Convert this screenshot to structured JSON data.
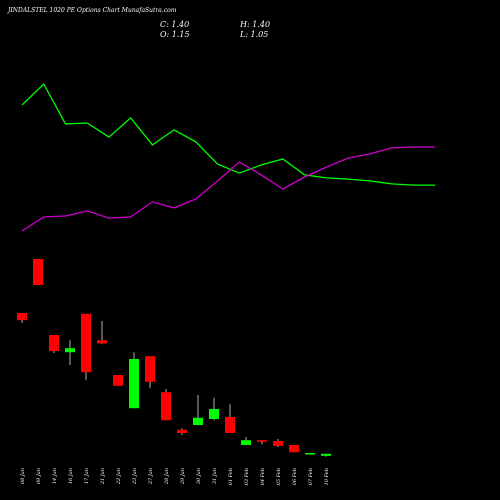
{
  "chart_data": {
    "type": "candlestick",
    "title": "JINDALSTEL 1020 PE Options Chart MunafaSutra.com",
    "info": {
      "close": "C: 1.40",
      "high": "H: 1.40",
      "open": "O: 1.15",
      "low": "L: 1.05"
    },
    "categories": [
      "08 Jan",
      "09 Jan",
      "14 Jan",
      "16 Jan",
      "17 Jan",
      "21 Jan",
      "22 Jan",
      "23 Jan",
      "27 Jan",
      "28 Jan",
      "29 Jan",
      "30 Jan",
      "31 Jan",
      "01 Feb",
      "03 Feb",
      "04 Feb",
      "05 Feb",
      "06 Feb",
      "07 Feb",
      "10 Feb"
    ],
    "open": [
      19,
      25.75,
      16.25,
      14.1,
      18.9,
      15.6,
      11.25,
      7.1,
      13.6,
      9.1,
      4.4,
      5.0,
      5.75,
      6.0,
      2.5,
      3.1,
      3.0,
      2.5,
      1.4,
      1.15
    ],
    "high": [
      19,
      25.75,
      16.25,
      15.6,
      18.9,
      18,
      11.25,
      14.1,
      13.6,
      9.5,
      4.6,
      8.75,
      8.4,
      7.6,
      3.5,
      3.1,
      3.25,
      2.5,
      1.5,
      1.4
    ],
    "low": [
      17.75,
      22.5,
      14,
      12.5,
      10.6,
      15.1,
      9.9,
      7.1,
      9.6,
      5.6,
      3.75,
      5.0,
      5.6,
      4.0,
      2.5,
      2.6,
      2.25,
      1.6,
      1.4,
      1.05
    ],
    "close": [
      18.1,
      22.5,
      14.25,
      14.6,
      11.6,
      15.2,
      9.9,
      13.25,
      10.4,
      5.6,
      4.0,
      5.9,
      7.0,
      4.0,
      3.1,
      2.9,
      2.4,
      1.6,
      1.5,
      1.4
    ],
    "up_color": "#00ff00",
    "down_color": "#ff0000",
    "ylim": [
      0,
      50
    ],
    "series": [
      {
        "color": "#00ff00",
        "axis": "y2",
        "values": [
          65,
          72,
          58.7,
          59,
          54.3,
          60.7,
          51.7,
          56.7,
          52.7,
          45.3,
          42.3,
          45,
          47,
          41.7,
          40.7,
          40.3,
          39.7,
          38.7,
          38.3,
          38.3
        ]
      },
      {
        "color": "#cc00cc",
        "axis": "y2",
        "values": [
          23,
          27.7,
          28,
          29.7,
          27.3,
          27.7,
          32.7,
          30.7,
          33.7,
          39.7,
          46,
          41.7,
          37,
          41,
          44.3,
          47.3,
          48.7,
          50.7,
          51,
          51
        ]
      }
    ],
    "y2lim": [
      0,
      100
    ]
  }
}
